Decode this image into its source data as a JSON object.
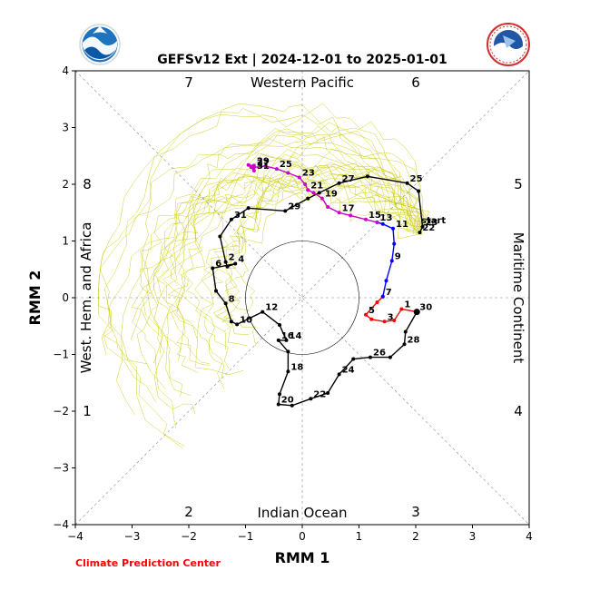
{
  "chart_data": {
    "type": "line",
    "title": "GEFSv12 Ext | 2024-12-01 to 2025-01-01",
    "xlabel": "RMM 1",
    "ylabel": "RMM 2",
    "xlim": [
      -4,
      4
    ],
    "ylim": [
      -4,
      4
    ],
    "xticks": [
      "−4",
      "−3",
      "−2",
      "−1",
      "0",
      "1",
      "2",
      "3",
      "4"
    ],
    "yticks": [
      "−4",
      "−3",
      "−2",
      "−1",
      "0",
      "1",
      "2",
      "3",
      "4"
    ],
    "region_labels": {
      "top": "Western Pacific",
      "bottom": "Indian Ocean",
      "left": "West. Hem. and Africa",
      "right": "Maritime Continent"
    },
    "phase_numbers": [
      "1",
      "2",
      "3",
      "4",
      "5",
      "6",
      "7",
      "8"
    ],
    "start_label": "start",
    "colors": {
      "black": "#000000",
      "red": "#ff0000",
      "blue": "#0000ff",
      "magenta": "#cc00cc",
      "ensemble": "#c8c800",
      "guide": "#888888"
    },
    "series": [
      {
        "color": "black",
        "points": [
          [
            2.07,
            1.15,
            "22"
          ],
          [
            2.12,
            1.25,
            "23"
          ],
          [
            2.05,
            1.88,
            ""
          ],
          [
            1.85,
            2.02,
            "25"
          ],
          [
            1.15,
            2.14,
            ""
          ],
          [
            0.65,
            2.02,
            "27"
          ],
          [
            0.3,
            1.85,
            ""
          ],
          [
            0.1,
            1.75,
            ""
          ],
          [
            -0.3,
            1.53,
            "29"
          ],
          [
            -0.95,
            1.58,
            ""
          ],
          [
            -1.25,
            1.38,
            "31"
          ],
          [
            -1.45,
            1.08,
            ""
          ],
          [
            -1.35,
            0.63,
            "2"
          ],
          [
            -1.32,
            0.55,
            ""
          ],
          [
            -1.18,
            0.6,
            "4"
          ],
          [
            -1.58,
            0.52,
            "6"
          ],
          [
            -1.52,
            0.12,
            ""
          ],
          [
            -1.35,
            -0.1,
            "8"
          ],
          [
            -1.25,
            -0.42,
            ""
          ],
          [
            -1.15,
            -0.47,
            "10"
          ],
          [
            -0.7,
            -0.25,
            "12"
          ],
          [
            -0.4,
            -0.48,
            ""
          ],
          [
            -0.28,
            -0.75,
            "14"
          ],
          [
            -0.42,
            -0.75,
            "16"
          ],
          [
            -0.25,
            -0.95,
            ""
          ],
          [
            -0.25,
            -1.3,
            "18"
          ],
          [
            -0.4,
            -1.7,
            ""
          ],
          [
            -0.42,
            -1.88,
            "20"
          ],
          [
            -0.18,
            -1.9,
            ""
          ],
          [
            0.15,
            -1.78,
            "22"
          ],
          [
            0.45,
            -1.68,
            ""
          ],
          [
            0.65,
            -1.35,
            "24"
          ],
          [
            0.9,
            -1.08,
            ""
          ],
          [
            1.2,
            -1.05,
            "26"
          ],
          [
            1.55,
            -1.05,
            ""
          ],
          [
            1.8,
            -0.82,
            "28"
          ],
          [
            1.82,
            -0.6,
            ""
          ],
          [
            2.02,
            -0.25,
            "30"
          ]
        ]
      },
      {
        "color": "red",
        "points": [
          [
            2.02,
            -0.25,
            ""
          ],
          [
            1.75,
            -0.2,
            "1"
          ],
          [
            1.62,
            -0.4,
            ""
          ],
          [
            1.45,
            -0.42,
            "3"
          ],
          [
            1.22,
            -0.38,
            ""
          ],
          [
            1.12,
            -0.3,
            "5"
          ],
          [
            1.32,
            -0.08,
            ""
          ],
          [
            1.42,
            0.02,
            "7"
          ]
        ]
      },
      {
        "color": "blue",
        "points": [
          [
            1.42,
            0.02,
            ""
          ],
          [
            1.48,
            0.3,
            ""
          ],
          [
            1.58,
            0.65,
            "9"
          ],
          [
            1.62,
            0.95,
            ""
          ],
          [
            1.6,
            1.22,
            "11"
          ],
          [
            1.42,
            1.3,
            ""
          ],
          [
            1.32,
            1.33,
            "13"
          ]
        ]
      },
      {
        "color": "magenta",
        "points": [
          [
            1.32,
            1.33,
            ""
          ],
          [
            1.12,
            1.38,
            "15"
          ],
          [
            0.85,
            1.45,
            ""
          ],
          [
            0.65,
            1.5,
            "17"
          ],
          [
            0.45,
            1.6,
            ""
          ],
          [
            0.35,
            1.75,
            "19"
          ],
          [
            0.2,
            1.85,
            ""
          ],
          [
            0.1,
            1.9,
            "21"
          ],
          [
            0.05,
            2.0,
            ""
          ],
          [
            -0.05,
            2.12,
            "23"
          ],
          [
            -0.25,
            2.2,
            ""
          ],
          [
            -0.45,
            2.27,
            "25"
          ],
          [
            -0.65,
            2.32,
            ""
          ],
          [
            -0.85,
            2.3,
            "27"
          ],
          [
            -0.95,
            2.34,
            ""
          ],
          [
            -0.85,
            2.33,
            "29"
          ],
          [
            -0.9,
            2.3,
            ""
          ],
          [
            -0.85,
            2.24,
            "31"
          ]
        ]
      }
    ]
  }
}
